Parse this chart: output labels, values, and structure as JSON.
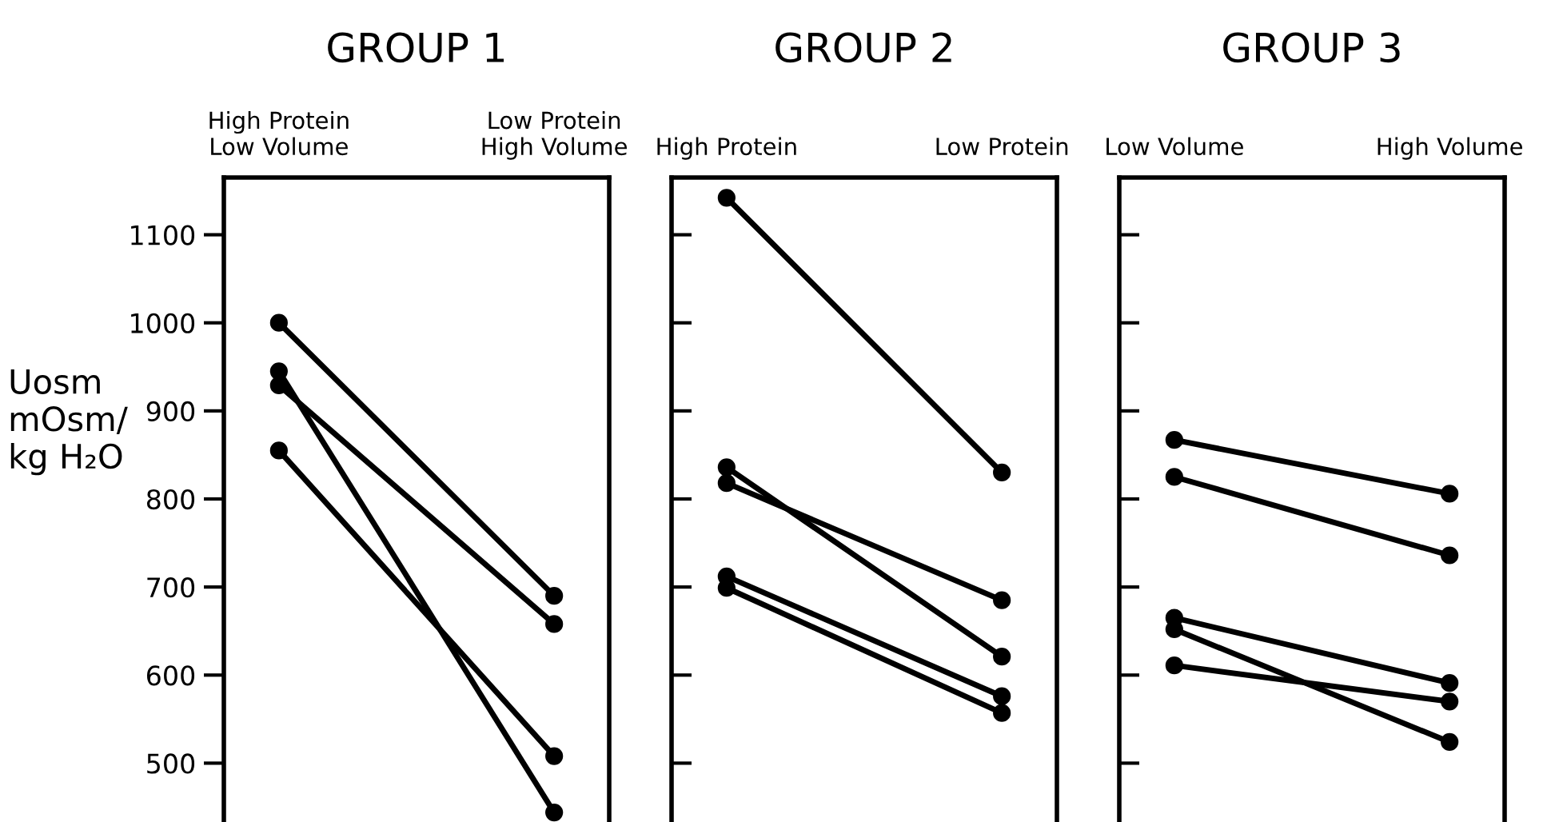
{
  "chart_data": [
    {
      "type": "line",
      "title": "GROUP 1",
      "ylabel": "Uosm\nmOsm/\nkg H₂O",
      "categories": [
        "High Protein\nLow Volume",
        "Low Protein\nHigh Volume"
      ],
      "ylim": [
        435,
        1165
      ],
      "yticks": [
        500,
        600,
        700,
        800,
        900,
        1000,
        1100
      ],
      "marker": "circle",
      "line_style": "solid",
      "grid": false,
      "legend": false,
      "series": [
        {
          "color": "#000000",
          "values": [
            1000,
            690
          ]
        },
        {
          "color": "#000000",
          "values": [
            945,
            444
          ]
        },
        {
          "color": "#000000",
          "values": [
            929,
            658
          ]
        },
        {
          "color": "#000000",
          "values": [
            855,
            508
          ]
        }
      ]
    },
    {
      "type": "line",
      "title": "GROUP 2",
      "categories": [
        "High Protein",
        "Low Protein"
      ],
      "ylim": [
        435,
        1165
      ],
      "yticks": [
        500,
        600,
        700,
        800,
        900,
        1000,
        1100
      ],
      "tick_labels": "x",
      "marker": "circle",
      "line_style": "solid",
      "grid": false,
      "legend": false,
      "series": [
        {
          "color": "#000000",
          "values": [
            1142,
            830
          ]
        },
        {
          "color": "#000000",
          "values": [
            836,
            621
          ]
        },
        {
          "color": "#000000",
          "values": [
            818,
            685
          ]
        },
        {
          "color": "#000000",
          "values": [
            712,
            576
          ]
        },
        {
          "color": "#000000",
          "values": [
            699,
            557
          ]
        }
      ]
    },
    {
      "type": "line",
      "title": "GROUP 3",
      "categories": [
        "Low Volume",
        "High Volume"
      ],
      "ylim": [
        435,
        1165
      ],
      "yticks": [
        500,
        600,
        700,
        800,
        900,
        1000,
        1100
      ],
      "tick_labels": "x",
      "marker": "circle",
      "line_style": "solid",
      "grid": false,
      "legend": false,
      "series": [
        {
          "color": "#000000",
          "values": [
            867,
            806
          ]
        },
        {
          "color": "#000000",
          "values": [
            825,
            736
          ]
        },
        {
          "color": "#000000",
          "values": [
            665,
            591
          ]
        },
        {
          "color": "#000000",
          "values": [
            652,
            524
          ]
        },
        {
          "color": "#000000",
          "values": [
            611,
            570
          ]
        }
      ]
    }
  ]
}
